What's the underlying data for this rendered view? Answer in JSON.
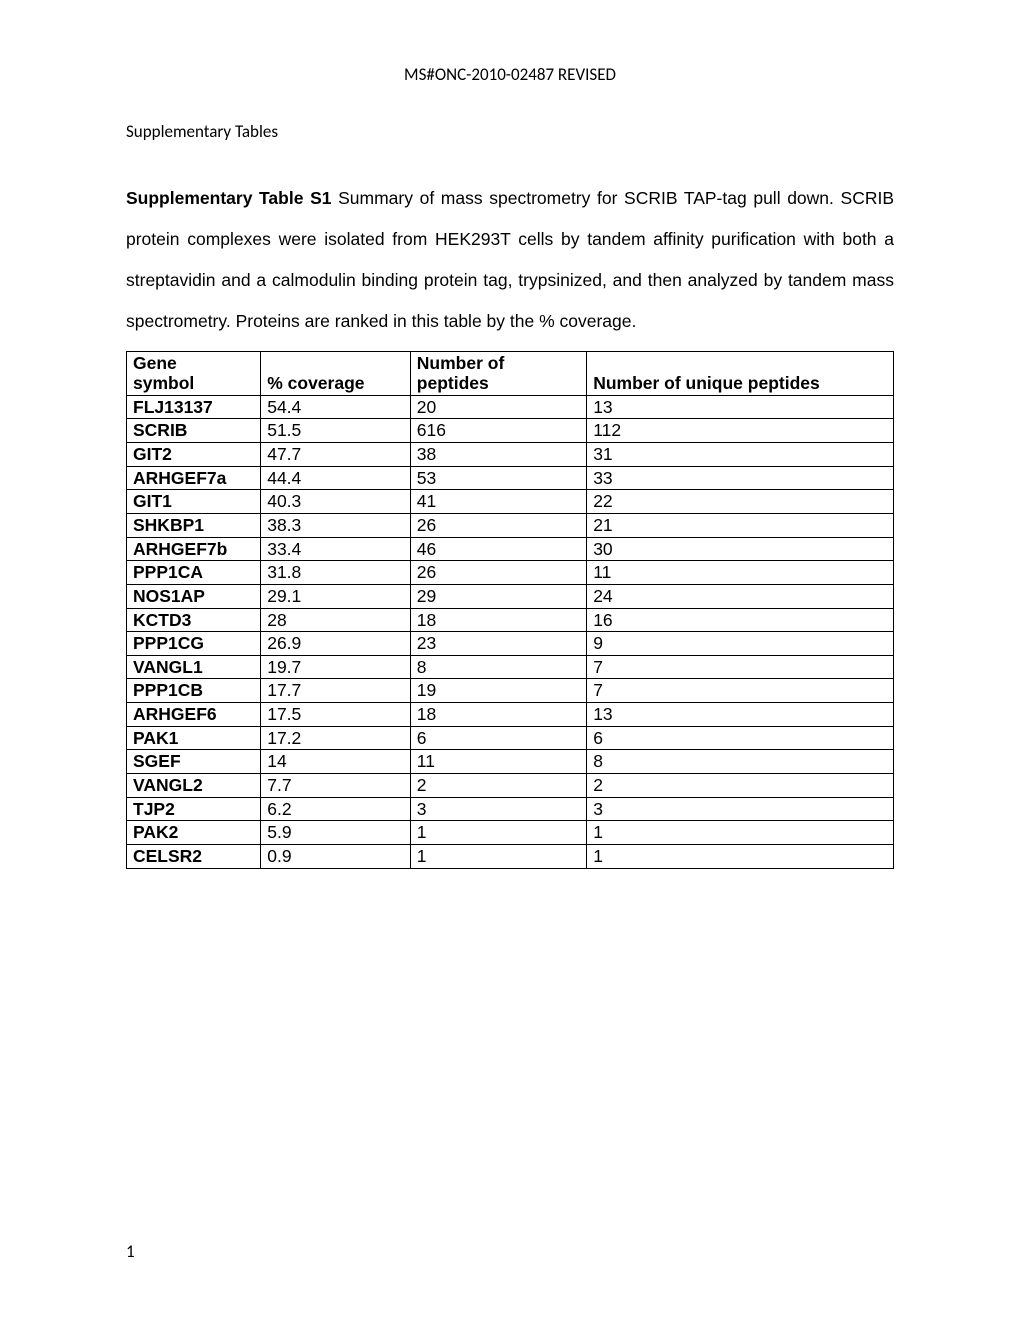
{
  "header": "MS#ONC-2010-02487 REVISED",
  "section_title": "Supplementary Tables",
  "caption": {
    "title": "Supplementary Table S1",
    "text_after_title": " Summary of mass spectrometry for SCRIB TAP-tag pull down. SCRIB protein complexes were isolated from HEK293T cells by tandem affinity purification with both a streptavidin and a calmodulin binding protein tag, trypsinized, and then analyzed by tandem mass spectrometry. Proteins are ranked in this table by the % coverage."
  },
  "table": {
    "columns": [
      {
        "key": "gene",
        "label_line1": "Gene",
        "label_line2": "symbol",
        "width_pct": 17.5,
        "bold_cells": true
      },
      {
        "key": "cov",
        "label_line1": "",
        "label_line2": "% coverage",
        "width_pct": 19.5,
        "bold_cells": false
      },
      {
        "key": "pep",
        "label_line1": "Number of",
        "label_line2": "peptides",
        "width_pct": 23,
        "bold_cells": false
      },
      {
        "key": "uni",
        "label_line1": "",
        "label_line2": "Number of unique peptides",
        "width_pct": 40,
        "bold_cells": false
      }
    ],
    "rows": [
      {
        "gene": "FLJ13137",
        "cov": "54.4",
        "pep": "20",
        "uni": "13"
      },
      {
        "gene": "SCRIB",
        "cov": "51.5",
        "pep": "616",
        "uni": "112"
      },
      {
        "gene": "GIT2",
        "cov": "47.7",
        "pep": "38",
        "uni": "31"
      },
      {
        "gene": "ARHGEF7a",
        "cov": "44.4",
        "pep": "53",
        "uni": "33"
      },
      {
        "gene": "GIT1",
        "cov": "40.3",
        "pep": "41",
        "uni": "22"
      },
      {
        "gene": "SHKBP1",
        "cov": "38.3",
        "pep": "26",
        "uni": "21"
      },
      {
        "gene": "ARHGEF7b",
        "cov": "33.4",
        "pep": "46",
        "uni": "30"
      },
      {
        "gene": "PPP1CA",
        "cov": "31.8",
        "pep": "26",
        "uni": "11"
      },
      {
        "gene": "NOS1AP",
        "cov": "29.1",
        "pep": "29",
        "uni": "24"
      },
      {
        "gene": "KCTD3",
        "cov": "28",
        "pep": "18",
        "uni": "16"
      },
      {
        "gene": "PPP1CG",
        "cov": "26.9",
        "pep": "23",
        "uni": "9"
      },
      {
        "gene": "VANGL1",
        "cov": "19.7",
        "pep": "8",
        "uni": "7"
      },
      {
        "gene": "PPP1CB",
        "cov": "17.7",
        "pep": "19",
        "uni": "7"
      },
      {
        "gene": "ARHGEF6",
        "cov": "17.5",
        "pep": "18",
        "uni": "13"
      },
      {
        "gene": "PAK1",
        "cov": "17.2",
        "pep": "6",
        "uni": "6"
      },
      {
        "gene": "SGEF",
        "cov": "14",
        "pep": "11",
        "uni": "8"
      },
      {
        "gene": "VANGL2",
        "cov": "7.7",
        "pep": "2",
        "uni": "2"
      },
      {
        "gene": "TJP2",
        "cov": "6.2",
        "pep": "3",
        "uni": "3"
      },
      {
        "gene": "PAK2",
        "cov": "5.9",
        "pep": "1",
        "uni": "1"
      },
      {
        "gene": "CELSR2",
        "cov": "0.9",
        "pep": "1",
        "uni": "1"
      }
    ],
    "border_color": "#000000",
    "font_size_pt": 12,
    "header_font_weight": "bold"
  },
  "page_number": "1",
  "colors": {
    "background": "#ffffff",
    "text": "#000000",
    "border": "#000000"
  },
  "fonts": {
    "header": "Calibri",
    "body": "Arial"
  }
}
